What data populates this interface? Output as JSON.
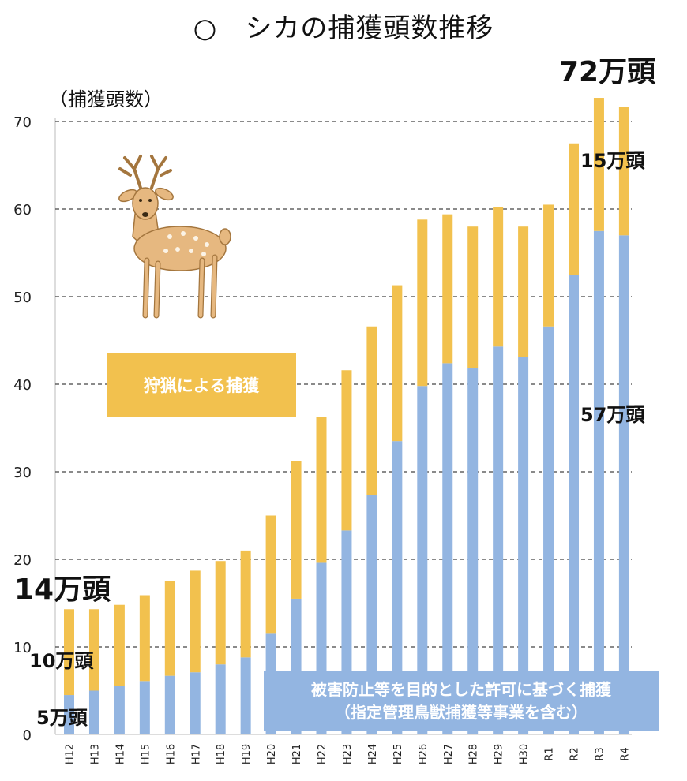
{
  "title": "○　シカの捕獲頭数推移",
  "colors": {
    "hunting": "#f2c14e",
    "permit": "#93b5e1",
    "grid": "#444444"
  },
  "icons": {
    "deer": "deer-illustration"
  },
  "chart_data": {
    "type": "bar",
    "stacked": true,
    "ylabel": "（捕獲頭数）",
    "xlabel": "",
    "ylim": [
      0,
      70
    ],
    "yticks": [
      0,
      10,
      20,
      30,
      40,
      50,
      60,
      70
    ],
    "grid": "dashed-horizontal",
    "categories": [
      "H12",
      "H13",
      "H14",
      "H15",
      "H16",
      "H17",
      "H18",
      "H19",
      "H20",
      "H21",
      "H22",
      "H23",
      "H24",
      "H25",
      "H26",
      "H27",
      "H28",
      "H29",
      "H30",
      "R1",
      "R2",
      "R3",
      "R4"
    ],
    "series": [
      {
        "name": "被害防止等を目的とした許可に基づく捕獲（指定管理鳥獣捕獲等事業を含む）",
        "color": "#93b5e1",
        "values": [
          4.5,
          5.0,
          5.5,
          6.1,
          6.7,
          7.1,
          8.0,
          8.8,
          11.5,
          15.5,
          19.6,
          23.3,
          27.3,
          33.5,
          39.8,
          42.4,
          41.8,
          44.3,
          43.1,
          46.6,
          52.5,
          57.5,
          57.0
        ]
      },
      {
        "name": "狩猟による捕獲",
        "color": "#f2c14e",
        "values": [
          9.8,
          9.3,
          9.3,
          9.8,
          10.8,
          11.6,
          11.8,
          12.2,
          13.5,
          15.7,
          16.7,
          18.3,
          19.3,
          17.8,
          19.0,
          17.0,
          16.2,
          15.9,
          14.9,
          13.9,
          15.0,
          15.2,
          14.7
        ]
      }
    ],
    "annotations": {
      "start_total": "14万頭",
      "start_hunting": "10万頭",
      "start_permit": "5万頭",
      "end_total": "72万頭",
      "end_hunting": "15万頭",
      "end_permit": "57万頭"
    },
    "legend_boxes": {
      "hunting": "狩猟による捕獲",
      "permit_line1": "被害防止等を目的とした許可に基づく捕獲",
      "permit_line2": "（指定管理鳥獣捕獲等事業を含む）"
    }
  }
}
